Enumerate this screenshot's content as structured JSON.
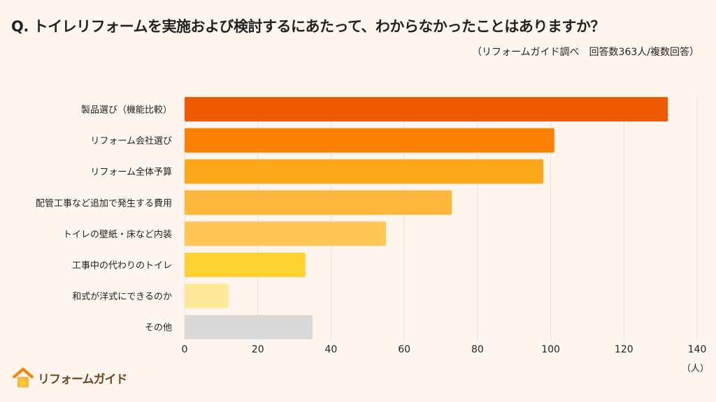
{
  "chart_data": {
    "type": "bar",
    "orientation": "horizontal",
    "title": "Q. トイレリフォームを実施および検討するにあたって、わからなかったことはありますか？",
    "subtitle": "（リフォームガイド調べ　回答数363人/複数回答）",
    "categories": [
      "製品選び（機能比較）",
      "リフォーム会社選び",
      "リフォーム全体予算",
      "配管工事など追加で発生する費用",
      "トイレの壁紙・床など内装",
      "工事中の代わりのトイレ",
      "和式が洋式にできるのか",
      "その他"
    ],
    "values": [
      132,
      101,
      98,
      73,
      55,
      33,
      12,
      35
    ],
    "colors": [
      "#ee5a00",
      "#fb7f00",
      "#fda81a",
      "#fdb73a",
      "#fec654",
      "#fed233",
      "#fee99a",
      "#d9d9d9"
    ],
    "xlim": [
      0,
      140
    ],
    "xticks": [
      0,
      20,
      40,
      60,
      80,
      100,
      120,
      140
    ],
    "xlabel": "（人）",
    "grid": true,
    "legend": "none"
  },
  "brand": {
    "logo_text": "リフォームガイド"
  }
}
